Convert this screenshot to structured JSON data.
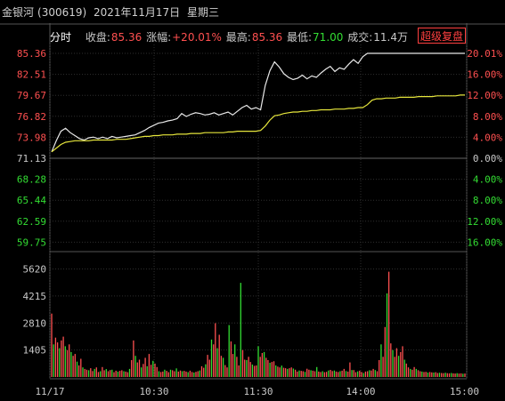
{
  "header": {
    "name": "金银河",
    "code": "(300619)",
    "date": "2021年11月17日",
    "weekday": "星期三"
  },
  "info": {
    "mode": "分时",
    "close_label": "收盘:",
    "close_value": "85.36",
    "change_label": "涨幅:",
    "change_value": "+20.01%",
    "high_label": "最高:",
    "high_value": "85.36",
    "low_label": "最低:",
    "low_value": "71.00",
    "volume_label": "成交:",
    "volume_value": "11.4万",
    "button_label": "超级复盘"
  },
  "colors": {
    "background": "#000000",
    "price_line": "#e8e8e8",
    "avg_line": "#e6e63c",
    "up": "#ff5050",
    "down": "#33dd33",
    "grid": "#3a3a3a"
  },
  "chart_data": {
    "type": "line",
    "prev_close": 71.13,
    "price_ticks": [
      "85.36",
      "82.51",
      "79.67",
      "76.82",
      "73.98",
      "71.13",
      "68.28",
      "65.44",
      "62.59",
      "59.75"
    ],
    "pct_ticks": [
      "20.01%",
      "16.00%",
      "12.00%",
      "8.00%",
      "4.00%",
      "0.00%",
      "4.00%",
      "8.00%",
      "12.00%",
      "16.00%"
    ],
    "volume_ticks": [
      "5620",
      "4215",
      "2810",
      "1405"
    ],
    "time_ticks": [
      "11/17",
      "10:30",
      "11:30",
      "14:00",
      "15:00"
    ],
    "ylim": [
      58.3,
      86.8
    ],
    "series": [
      {
        "values": [
          72.0,
          73.5,
          74.8,
          75.2,
          74.6,
          74.2,
          73.8,
          73.6,
          73.9,
          74.0,
          73.8,
          74.0,
          73.8,
          74.1,
          73.9,
          74.0,
          74.1,
          74.2,
          74.3,
          74.6,
          74.9,
          75.3,
          75.6,
          75.9,
          76.0,
          76.2,
          76.3,
          76.5,
          77.2,
          76.8,
          77.1,
          77.3,
          77.2,
          77.0,
          77.1,
          77.3,
          77.0,
          77.2,
          77.4,
          77.0,
          77.5,
          78.0,
          78.3,
          77.8,
          78.0,
          77.7,
          81.0,
          83.0,
          84.2,
          83.5,
          82.6,
          82.1,
          81.8,
          82.0,
          82.4,
          81.9,
          82.3,
          82.1,
          82.7,
          83.2,
          83.6,
          82.9,
          83.4,
          83.2,
          83.9,
          84.5,
          84.0,
          84.9,
          85.36,
          85.36,
          85.36,
          85.36,
          85.36,
          85.36,
          85.36,
          85.36,
          85.36,
          85.36,
          85.36,
          85.36,
          85.36,
          85.36,
          85.36,
          85.36,
          85.36,
          85.36,
          85.36,
          85.36,
          85.36,
          85.36
        ]
      },
      {
        "values": [
          72.0,
          72.5,
          73.0,
          73.3,
          73.4,
          73.5,
          73.5,
          73.5,
          73.5,
          73.6,
          73.6,
          73.6,
          73.6,
          73.6,
          73.7,
          73.7,
          73.7,
          73.8,
          73.9,
          74.0,
          74.1,
          74.1,
          74.2,
          74.2,
          74.3,
          74.3,
          74.3,
          74.4,
          74.4,
          74.4,
          74.5,
          74.5,
          74.5,
          74.6,
          74.6,
          74.6,
          74.6,
          74.6,
          74.7,
          74.7,
          74.8,
          74.8,
          74.8,
          74.8,
          74.8,
          74.9,
          75.5,
          76.3,
          76.9,
          77.0,
          77.2,
          77.3,
          77.4,
          77.4,
          77.5,
          77.5,
          77.6,
          77.6,
          77.7,
          77.7,
          77.7,
          77.8,
          77.8,
          77.8,
          77.9,
          77.9,
          78.0,
          78.0,
          78.4,
          79.0,
          79.2,
          79.2,
          79.3,
          79.3,
          79.3,
          79.4,
          79.4,
          79.4,
          79.4,
          79.5,
          79.5,
          79.5,
          79.5,
          79.6,
          79.6,
          79.6,
          79.6,
          79.6,
          79.7,
          79.7
        ]
      }
    ],
    "volume": {
      "ylim": [
        0,
        6200
      ],
      "values": [
        3300,
        1700,
        2050,
        1800,
        1500,
        1900,
        2100,
        1600,
        1400,
        1700,
        1300,
        1100,
        1200,
        800,
        600,
        950,
        500,
        420,
        380,
        350,
        460,
        310,
        420,
        500,
        260,
        300,
        520,
        350,
        410,
        300,
        360,
        380,
        250,
        330,
        280,
        320,
        350,
        300,
        280,
        250,
        420,
        880,
        1900,
        1100,
        760,
        900,
        500,
        680,
        1000,
        560,
        1200,
        640,
        840,
        700,
        520,
        300,
        260,
        280,
        380,
        320,
        250,
        380,
        350,
        300,
        450,
        280,
        340,
        300,
        320,
        280,
        250,
        330,
        260,
        230,
        270,
        300,
        340,
        560,
        480,
        660,
        1150,
        900,
        1950,
        1700,
        2800,
        1500,
        2200,
        1100,
        1000,
        620,
        500,
        2700,
        1850,
        1200,
        1700,
        1050,
        600,
        4900,
        1400,
        900,
        880,
        1050,
        780,
        650,
        580,
        600,
        1600,
        1050,
        1250,
        1300,
        1000,
        880,
        740,
        780,
        820,
        600,
        540,
        500,
        590,
        480,
        460,
        420,
        460,
        500,
        440,
        380,
        280,
        340,
        320,
        300,
        270,
        430,
        380,
        350,
        330,
        300,
        520,
        280,
        260,
        300,
        250,
        270,
        340,
        370,
        310,
        340,
        280,
        260,
        300,
        330,
        420,
        310,
        280,
        760,
        360,
        360,
        250,
        290,
        330,
        260,
        210,
        280,
        300,
        350,
        340,
        420,
        360,
        300,
        880,
        1700,
        1050,
        2600,
        4350,
        5480,
        1750,
        1400,
        1050,
        1500,
        1100,
        1300,
        1600,
        900,
        700,
        500,
        420,
        380,
        520,
        420,
        350,
        300,
        280,
        260,
        270,
        230,
        260,
        240,
        230,
        250,
        210,
        220,
        210,
        200,
        220,
        200,
        190,
        210,
        190,
        180,
        200,
        180,
        190,
        170,
        180
      ]
    }
  }
}
